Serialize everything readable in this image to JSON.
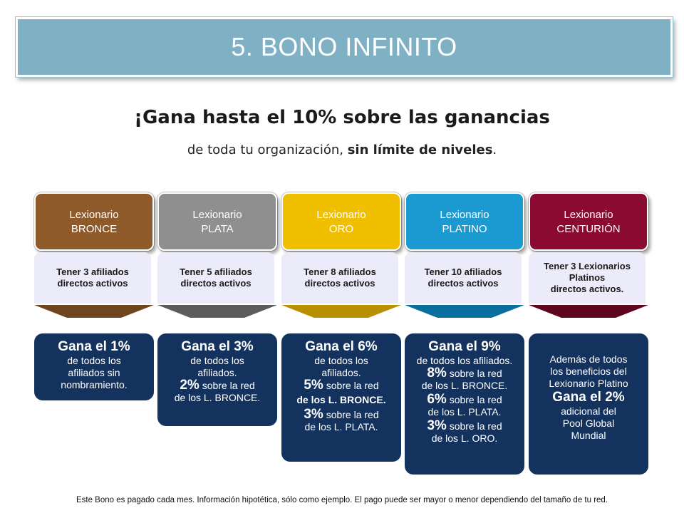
{
  "title": "5. BONO INFINITO",
  "headline": "¡Gana hasta el 10%  sobre las ganancias",
  "subline": {
    "prefix": "de toda tu organización, ",
    "bold": "sin límite de niveles",
    "suffix": "."
  },
  "levels": [
    {
      "label_top": "Lexionario",
      "label_bottom": "BRONCE",
      "color": "#8e5a2a",
      "arrow_color": "#6f4520",
      "requirement": "Tener 3 afiliados directos activos",
      "earn_title": "Gana el 1%",
      "earn_lines": [
        "de todos los",
        "afiliados sin",
        "nombramiento."
      ]
    },
    {
      "label_top": "Lexionario",
      "label_bottom": "PLATA",
      "color": "#8f8f8f",
      "arrow_color": "#5c5c5c",
      "requirement": "Tener 5 afiliados directos activos",
      "earn_title": "Gana el 3%",
      "earn_lines": [
        "de todos los",
        "afiliados."
      ],
      "tiers": [
        {
          "pct": "2%",
          "text": " sobre la red",
          "sub": "de los L. BRONCE."
        }
      ]
    },
    {
      "label_top": "Lexionario",
      "label_bottom": "ORO",
      "color": "#f0c000",
      "arrow_color": "#b88f00",
      "requirement": "Tener 8 afiliados directos activos",
      "earn_title": "Gana el 6%",
      "earn_lines": [
        "de todos los",
        "afiliados."
      ],
      "tiers": [
        {
          "pct": "5%",
          "text": " sobre la red",
          "sub": "de los L. BRONCE."
        },
        {
          "pct": "3%",
          "text": " sobre la red",
          "sub": "de los L. PLATA."
        }
      ]
    },
    {
      "label_top": "Lexionario",
      "label_bottom": "PLATINO",
      "color": "#1a9ad0",
      "arrow_color": "#0a6e9e",
      "requirement": "Tener 10 afiliados directos activos",
      "earn_title": "Gana el 9%",
      "earn_lines": [
        "de todos los afiliados."
      ],
      "tiers": [
        {
          "pct": "8%",
          "text": " sobre la red",
          "sub": "de los L. BRONCE."
        },
        {
          "pct": "6%",
          "text": " sobre la red",
          "sub": "de los L. PLATA."
        },
        {
          "pct": "3%",
          "text": " sobre la red",
          "sub": "de los L. ORO."
        }
      ]
    },
    {
      "label_top": "Lexionario",
      "label_bottom": "CENTURIÓN",
      "color": "#8a0a32",
      "arrow_color": "#5e0620",
      "requirement_lines": [
        "Tener 3 Lexionarios",
        "Platinos",
        "directos activos."
      ],
      "earn_intro": [
        "Además de todos",
        "los beneficios del",
        "Lexionario Platino"
      ],
      "earn_title": "Gana el 2%",
      "earn_lines": [
        "adicional del",
        "Pool Global",
        "Mundial"
      ]
    }
  ],
  "footer": "Este Bono es pagado cada mes. Información hipotética, sólo como ejemplo. El pago puede ser mayor o menor dependiendo del tamaño de tu red."
}
